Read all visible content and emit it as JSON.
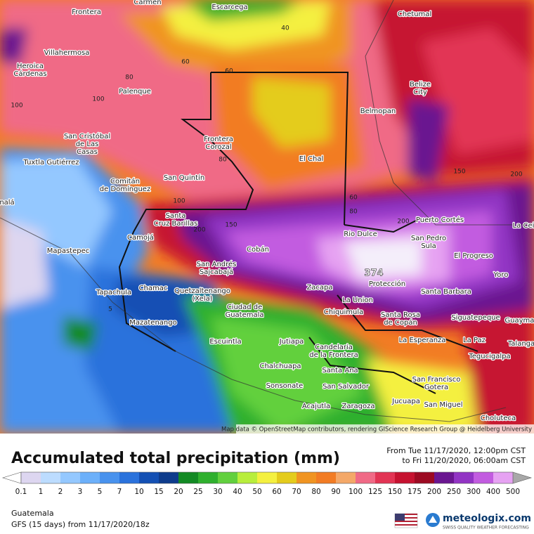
{
  "map": {
    "places": [
      [
        "Carmen"
      ],
      [
        "Frontera"
      ],
      [
        "Escarcega"
      ],
      [
        "Chetumal"
      ],
      [
        "Villahermosa"
      ],
      [
        "Heroica",
        "Cárdenas"
      ],
      [
        "Palenque"
      ],
      [
        "Belize",
        "City"
      ],
      [
        "Belmopan"
      ],
      [
        "San Cristóbal",
        "de Las",
        "Casas"
      ],
      [
        "Frontera",
        "Corozal"
      ],
      [
        "Tuxtla Gutiérrez"
      ],
      [
        "El Chal"
      ],
      [
        "Comitán",
        "de Domínguez"
      ],
      [
        "San Quintín"
      ],
      [
        "nalá"
      ],
      [
        "Santa",
        "Cruz Barillas"
      ],
      [
        "Puerto Cortés"
      ],
      [
        "Rio Dulce"
      ],
      [
        "San Pedro",
        "Sula"
      ],
      [
        "La Cei"
      ],
      [
        "Camojá"
      ],
      [
        "Cobán"
      ],
      [
        "El Progreso"
      ],
      [
        "Mapastepec"
      ],
      [
        "San Andrés",
        "Sajcabajá"
      ],
      [
        "Yoro"
      ],
      [
        "Zacapa"
      ],
      [
        "Protección"
      ],
      [
        "Santa Barbara"
      ],
      [
        "Chamac"
      ],
      [
        "Tapachula"
      ],
      [
        "Quetzaltenango",
        "(Xela)"
      ],
      [
        "La Union"
      ],
      [
        "Ciudad de",
        "Guatemala"
      ],
      [
        "Chiquimula"
      ],
      [
        "Santa Rosa",
        "de Copán"
      ],
      [
        "Siguatepeque"
      ],
      [
        "Guaymas"
      ],
      [
        "Mazatenango"
      ],
      [
        "La Esperanza"
      ],
      [
        "La Paz"
      ],
      [
        "Escuintla"
      ],
      [
        "Jutiapa"
      ],
      [
        "Candelaria",
        "de la Frontera"
      ],
      [
        "Talanga"
      ],
      [
        "Tegucigalpa"
      ],
      [
        "Chalchuapa"
      ],
      [
        "Santa Ana"
      ],
      [
        "San Francisco",
        "Gotera"
      ],
      [
        "Sonsonate"
      ],
      [
        "San Salvador"
      ],
      [
        "Acajutla"
      ],
      [
        "Zaragoza"
      ],
      [
        "Jucuapa"
      ],
      [
        "San Miguel"
      ],
      [
        "Choluteca"
      ]
    ],
    "contour_labels": [
      40,
      60,
      60,
      80,
      100,
      80,
      100,
      150,
      200,
      200,
      150,
      200,
      60,
      80,
      5,
      100
    ],
    "max_label": "374",
    "attribution": "Map data © OpenStreetMap contributors, rendering GIScience Research Group @ Heidelberg University"
  },
  "header": {
    "title": "Accumulated total precipitation (mm)",
    "from": "From Tue 11/17/2020, 12:00pm CST",
    "to": "to Fri 11/20/2020, 06:00am CST"
  },
  "legend": {
    "labels": [
      "0.1",
      "1",
      "2",
      "3",
      "5",
      "7",
      "10",
      "15",
      "20",
      "25",
      "30",
      "40",
      "50",
      "60",
      "70",
      "80",
      "90",
      "100",
      "125",
      "150",
      "175",
      "200",
      "250",
      "300",
      "400",
      "500"
    ],
    "colors": [
      "#ddd6f0",
      "#bcdcff",
      "#94c8ff",
      "#6cb0fa",
      "#4892ee",
      "#2a72dc",
      "#1450b4",
      "#0e3c8c",
      "#138a24",
      "#2fb02e",
      "#62d03e",
      "#b8ee3c",
      "#f4f040",
      "#e4cc1c",
      "#f09422",
      "#f27c24",
      "#f4a868",
      "#f06a86",
      "#e23454",
      "#c61230",
      "#9c0a22",
      "#6a1690",
      "#9234c4",
      "#c25ce0",
      "#e6a2f2"
    ],
    "under_color": "#ffffff",
    "over_color": "#a8a8a8"
  },
  "footer": {
    "region": "Guatemala",
    "model": "GFS (15 days) from 11/17/2020/18z",
    "brand": "meteologix.com",
    "tagline": "SWISS QUALITY WEATHER FORECASTING"
  }
}
